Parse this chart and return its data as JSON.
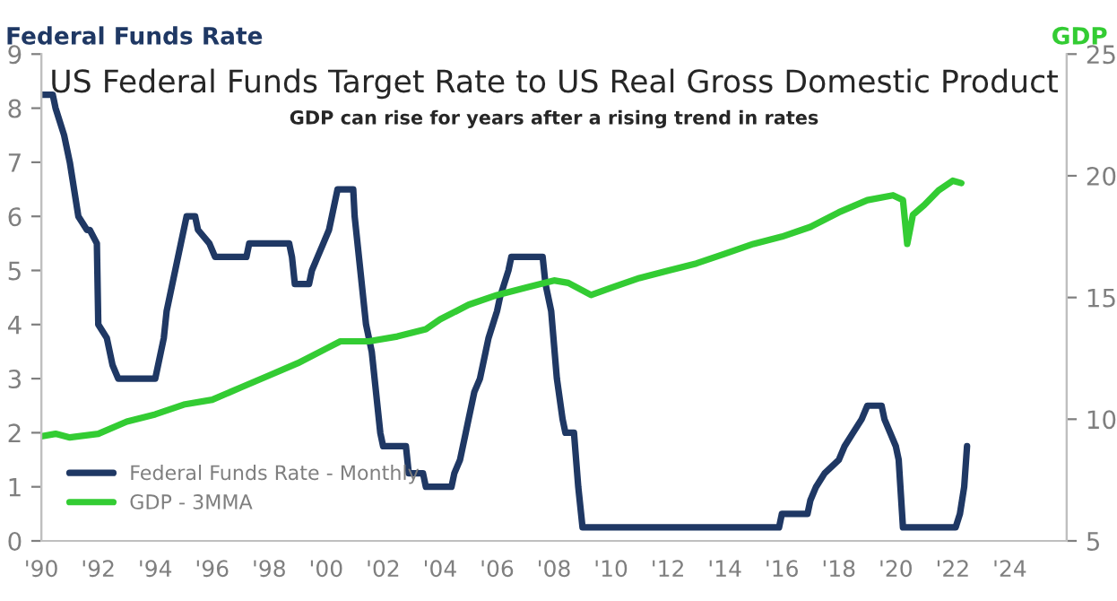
{
  "chart_data": {
    "type": "line",
    "title": "US Federal Funds Target Rate to US Real Gross Domestic Product",
    "subtitle": "GDP can rise for years after a rising trend in rates",
    "ylabel": "Federal Funds Rate",
    "y2label": "GDP",
    "xlim": [
      1990,
      2026
    ],
    "xticks": [
      {
        "value": 1990,
        "label": "'90"
      },
      {
        "value": 1992,
        "label": "'92"
      },
      {
        "value": 1994,
        "label": "'94"
      },
      {
        "value": 1996,
        "label": "'96"
      },
      {
        "value": 1998,
        "label": "'98"
      },
      {
        "value": 2000,
        "label": "'00"
      },
      {
        "value": 2002,
        "label": "'02"
      },
      {
        "value": 2004,
        "label": "'04"
      },
      {
        "value": 2006,
        "label": "'06"
      },
      {
        "value": 2008,
        "label": "'08"
      },
      {
        "value": 2010,
        "label": "'10"
      },
      {
        "value": 2012,
        "label": "'12"
      },
      {
        "value": 2014,
        "label": "'14"
      },
      {
        "value": 2016,
        "label": "'16"
      },
      {
        "value": 2018,
        "label": "'18"
      },
      {
        "value": 2020,
        "label": "'20"
      },
      {
        "value": 2022,
        "label": "'22"
      },
      {
        "value": 2024,
        "label": "'24"
      }
    ],
    "ylim": [
      0,
      9
    ],
    "yticks": [
      0,
      1,
      2,
      3,
      4,
      5,
      6,
      7,
      8,
      9
    ],
    "y2lim": [
      5,
      25
    ],
    "y2ticks": [
      5,
      10,
      15,
      20,
      25
    ],
    "grid": false,
    "legend": "bottom left",
    "marker": "none",
    "line_style": "solid",
    "series": [
      {
        "name": "Federal Funds Rate - Monthly",
        "color": "#1f3864",
        "x": [
          1990.0,
          1990.4,
          1990.5,
          1990.8,
          1991.0,
          1991.3,
          1991.6,
          1991.7,
          1991.95,
          1992.0,
          1992.3,
          1992.5,
          1992.7,
          1994.0,
          1994.1,
          1994.3,
          1994.4,
          1994.6,
          1994.9,
          1995.1,
          1995.4,
          1995.5,
          1995.9,
          1996.1,
          1997.2,
          1997.3,
          1998.7,
          1998.8,
          1998.9,
          1999.4,
          1999.5,
          1999.7,
          1999.9,
          2000.1,
          2000.2,
          2000.4,
          2000.95,
          2001.0,
          2001.2,
          2001.4,
          2001.6,
          2001.9,
          2002.0,
          2002.8,
          2002.9,
          2003.4,
          2003.5,
          2004.4,
          2004.5,
          2004.7,
          2004.9,
          2005.0,
          2005.2,
          2005.4,
          2005.6,
          2005.7,
          2006.0,
          2006.1,
          2006.4,
          2006.5,
          2007.6,
          2007.7,
          2007.9,
          2008.1,
          2008.3,
          2008.4,
          2008.7,
          2008.85,
          2009.0,
          2015.9,
          2016.0,
          2016.9,
          2017.0,
          2017.2,
          2017.5,
          2018.0,
          2018.2,
          2018.5,
          2018.8,
          2019.0,
          2019.5,
          2019.6,
          2019.8,
          2020.0,
          2020.1,
          2020.25,
          2022.1,
          2022.25,
          2022.4,
          2022.5
        ],
        "values": [
          8.25,
          8.25,
          8.0,
          7.5,
          7.0,
          6.0,
          5.75,
          5.75,
          5.5,
          4.0,
          3.75,
          3.25,
          3.0,
          3.0,
          3.25,
          3.75,
          4.25,
          4.75,
          5.5,
          6.0,
          6.0,
          5.75,
          5.5,
          5.25,
          5.25,
          5.5,
          5.5,
          5.25,
          4.75,
          4.75,
          5.0,
          5.25,
          5.5,
          5.75,
          6.0,
          6.5,
          6.5,
          6.0,
          5.0,
          4.0,
          3.5,
          2.0,
          1.75,
          1.75,
          1.25,
          1.25,
          1.0,
          1.0,
          1.25,
          1.5,
          2.0,
          2.25,
          2.75,
          3.0,
          3.5,
          3.75,
          4.25,
          4.5,
          5.0,
          5.25,
          5.25,
          4.75,
          4.25,
          3.0,
          2.25,
          2.0,
          2.0,
          1.0,
          0.25,
          0.25,
          0.5,
          0.5,
          0.75,
          1.0,
          1.25,
          1.5,
          1.75,
          2.0,
          2.25,
          2.5,
          2.5,
          2.25,
          2.0,
          1.75,
          1.5,
          0.25,
          0.25,
          0.5,
          1.0,
          1.75
        ]
      },
      {
        "name": "GDP - 3MMA",
        "color": "#33cc33",
        "axis": "y2",
        "x": [
          1990.0,
          1990.5,
          1991.0,
          1992.0,
          1993.0,
          1994.0,
          1995.0,
          1996.0,
          1997.0,
          1998.0,
          1999.0,
          2000.0,
          2000.5,
          2001.5,
          2002.5,
          2003.5,
          2004.0,
          2005.0,
          2006.0,
          2007.0,
          2008.0,
          2008.5,
          2009.3,
          2010.0,
          2011.0,
          2012.0,
          2013.0,
          2014.0,
          2015.0,
          2016.0,
          2017.0,
          2018.0,
          2019.0,
          2019.9,
          2020.25,
          2020.4,
          2020.6,
          2021.0,
          2021.5,
          2022.0,
          2022.3
        ],
        "values": [
          9.3,
          9.4,
          9.25,
          9.4,
          9.9,
          10.2,
          10.6,
          10.8,
          11.3,
          11.8,
          12.3,
          12.9,
          13.2,
          13.2,
          13.4,
          13.7,
          14.1,
          14.7,
          15.1,
          15.4,
          15.7,
          15.6,
          15.1,
          15.4,
          15.8,
          16.1,
          16.4,
          16.8,
          17.2,
          17.5,
          17.9,
          18.5,
          19.0,
          19.2,
          19.0,
          17.2,
          18.4,
          18.8,
          19.4,
          19.8,
          19.7
        ]
      }
    ]
  }
}
